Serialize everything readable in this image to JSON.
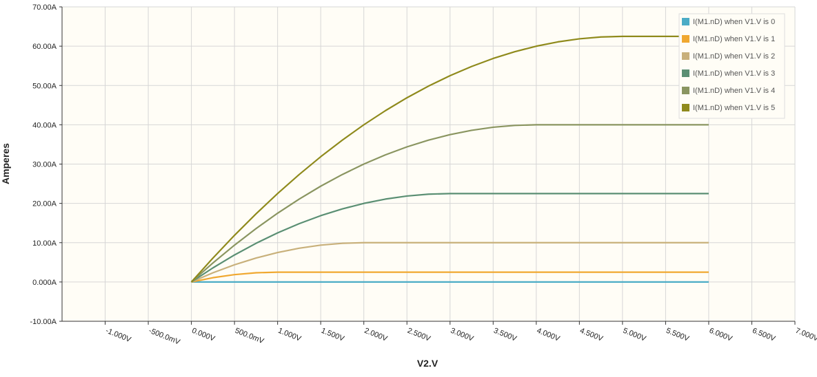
{
  "chart_data": {
    "type": "line",
    "title": "",
    "xlabel": "V2.V",
    "ylabel": "Amperes",
    "xlim": [
      -1.5,
      7.0
    ],
    "ylim": [
      -10,
      70
    ],
    "x_ticks": [
      -1.0,
      -0.5,
      0.0,
      0.5,
      1.0,
      1.5,
      2.0,
      2.5,
      3.0,
      3.5,
      4.0,
      4.5,
      5.0,
      5.5,
      6.0,
      6.5,
      7.0
    ],
    "x_tick_labels": [
      "-1.000V",
      "-500.0mV",
      "0.000V",
      "500.0mV",
      "1.000V",
      "1.500V",
      "2.000V",
      "2.500V",
      "3.000V",
      "3.500V",
      "4.000V",
      "4.500V",
      "5.000V",
      "5.500V",
      "6.000V",
      "6.500V",
      "7.000V"
    ],
    "y_ticks": [
      -10,
      0,
      10,
      20,
      30,
      40,
      50,
      60,
      70
    ],
    "y_tick_labels": [
      "-10.00A",
      "0.000A",
      "10.00A",
      "20.00A",
      "30.00A",
      "40.00A",
      "50.00A",
      "60.00A",
      "70.00A"
    ],
    "grid": true,
    "legend_position": "top-right",
    "background": "#fffdf6",
    "x": [
      0.0,
      0.25,
      0.5,
      0.75,
      1.0,
      1.25,
      1.5,
      1.75,
      2.0,
      2.25,
      2.5,
      2.75,
      3.0,
      3.25,
      3.5,
      3.75,
      4.0,
      4.25,
      4.5,
      4.75,
      5.0,
      5.25,
      5.5,
      5.75,
      6.0
    ],
    "series": [
      {
        "name": "I(M1.nD) when V1.V is 0",
        "color": "#4bacc6",
        "values": [
          0,
          0,
          0,
          0,
          0,
          0,
          0,
          0,
          0,
          0,
          0,
          0,
          0,
          0,
          0,
          0,
          0,
          0,
          0,
          0,
          0,
          0,
          0,
          0,
          0
        ]
      },
      {
        "name": "I(M1.nD) when V1.V is 1",
        "color": "#f0a830",
        "values": [
          0,
          1.09,
          1.875,
          2.34,
          2.5,
          2.5,
          2.5,
          2.5,
          2.5,
          2.5,
          2.5,
          2.5,
          2.5,
          2.5,
          2.5,
          2.5,
          2.5,
          2.5,
          2.5,
          2.5,
          2.5,
          2.5,
          2.5,
          2.5,
          2.5
        ]
      },
      {
        "name": "I(M1.nD) when V1.V is 2",
        "color": "#c8b07a",
        "values": [
          0,
          2.34,
          4.375,
          6.09,
          7.5,
          8.59,
          9.375,
          9.84,
          10,
          10,
          10,
          10,
          10,
          10,
          10,
          10,
          10,
          10,
          10,
          10,
          10,
          10,
          10,
          10,
          10
        ]
      },
      {
        "name": "I(M1.nD) when V1.V is 3",
        "color": "#5a8f73",
        "values": [
          0,
          3.59,
          6.875,
          9.84,
          12.5,
          14.84,
          16.875,
          18.59,
          20,
          21.09,
          21.875,
          22.34,
          22.5,
          22.5,
          22.5,
          22.5,
          22.5,
          22.5,
          22.5,
          22.5,
          22.5,
          22.5,
          22.5,
          22.5,
          22.5
        ]
      },
      {
        "name": "I(M1.nD) when V1.V is 4",
        "color": "#8a9560",
        "values": [
          0,
          4.84,
          9.375,
          13.59,
          17.5,
          21.09,
          24.375,
          27.34,
          30,
          32.34,
          34.375,
          36.09,
          37.5,
          38.59,
          39.375,
          39.84,
          40,
          40,
          40,
          40,
          40,
          40,
          40,
          40,
          40
        ]
      },
      {
        "name": "I(M1.nD) when V1.V is 5",
        "color": "#8f8a1c",
        "values": [
          0,
          6.09,
          11.875,
          17.34,
          22.5,
          27.34,
          31.875,
          36.09,
          40,
          43.59,
          46.875,
          49.84,
          52.5,
          54.84,
          56.875,
          58.59,
          60,
          61.09,
          61.875,
          62.34,
          62.5,
          62.5,
          62.5,
          62.5,
          62.5
        ]
      }
    ]
  }
}
